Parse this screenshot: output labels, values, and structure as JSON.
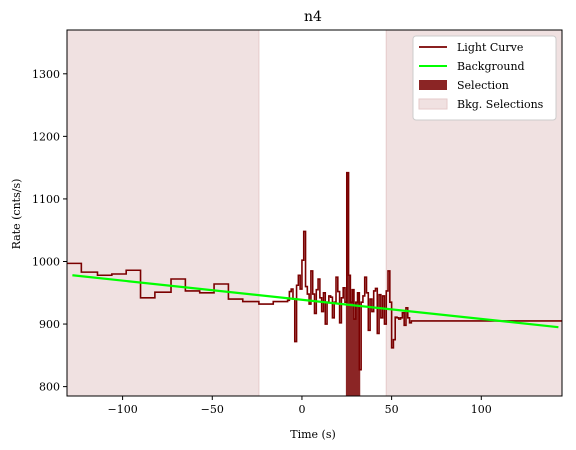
{
  "chart_data": {
    "type": "line",
    "title": "n4",
    "xlabel": "Time (s)",
    "ylabel": "Rate (cnts/s)",
    "xlim": [
      -131,
      145
    ],
    "ylim": [
      785,
      1370
    ],
    "xticks": [
      -100,
      -50,
      0,
      50,
      100
    ],
    "yticks": [
      800,
      900,
      1000,
      1100,
      1200,
      1300
    ],
    "xtick_labels": [
      "−100",
      "−50",
      "0",
      "50",
      "100"
    ],
    "ytick_labels": [
      "800",
      "900",
      "1000",
      "1100",
      "1200",
      "1300"
    ],
    "grid": false,
    "legend_position": "top-right",
    "legend": [
      "Light Curve",
      "Background",
      "Selection",
      "Bkg. Selections"
    ],
    "colors": {
      "light_curve": "#7a0000",
      "background": "#00ff00",
      "selection": "#8b2525",
      "bkg_selection": "#f0e1e1",
      "bkg_selection_edge": "#e6caca"
    },
    "light_curve_edges": [
      -131,
      -123,
      -114,
      -106,
      -98,
      -90,
      -82,
      -73,
      -65,
      -57,
      -49,
      -41,
      -33,
      -24,
      -16,
      -8,
      -7,
      -6,
      -5,
      -4,
      -3,
      -2,
      -1,
      0,
      1,
      2,
      3,
      4,
      5,
      6,
      7,
      8,
      9,
      10,
      11,
      12,
      13,
      14,
      15,
      16,
      17,
      18,
      19,
      20,
      21,
      22,
      23,
      24,
      25,
      26,
      27,
      28,
      29,
      30,
      31,
      32,
      33,
      34,
      35,
      36,
      37,
      38,
      39,
      40,
      41,
      42,
      43,
      44,
      45,
      46,
      47,
      48,
      49,
      50,
      51,
      52,
      53,
      54,
      55,
      56,
      57,
      58,
      59,
      60,
      61,
      62,
      70,
      78,
      86,
      94,
      102,
      110,
      118,
      127,
      135,
      145
    ],
    "light_curve_rates": [
      997,
      983,
      978,
      980,
      986,
      942,
      951,
      972,
      953,
      950,
      964,
      940,
      936,
      932,
      936,
      938,
      952,
      956,
      940,
      872,
      962,
      978,
      956,
      1002,
      1048,
      960,
      948,
      932,
      985,
      948,
      917,
      955,
      972,
      942,
      920,
      950,
      900,
      935,
      945,
      943,
      910,
      935,
      975,
      952,
      902,
      942,
      958,
      935,
      1142,
      978,
      935,
      955,
      908,
      935,
      950,
      827,
      935,
      945,
      975,
      950,
      890,
      940,
      920,
      953,
      957,
      885,
      947,
      910,
      945,
      900,
      953,
      985,
      935,
      862,
      875,
      911,
      910,
      908,
      910,
      918,
      898,
      926,
      910,
      902,
      905,
      905,
      905,
      905,
      905,
      905,
      905,
      905,
      905,
      905,
      905
    ],
    "background": {
      "x": [
        -128,
        143
      ],
      "y": [
        978,
        895
      ]
    },
    "selection": {
      "x": [
        24.5,
        32.5
      ]
    },
    "bkg_selections": [
      {
        "x": [
          -131,
          -24
        ]
      },
      {
        "x": [
          47,
          145
        ]
      }
    ]
  }
}
